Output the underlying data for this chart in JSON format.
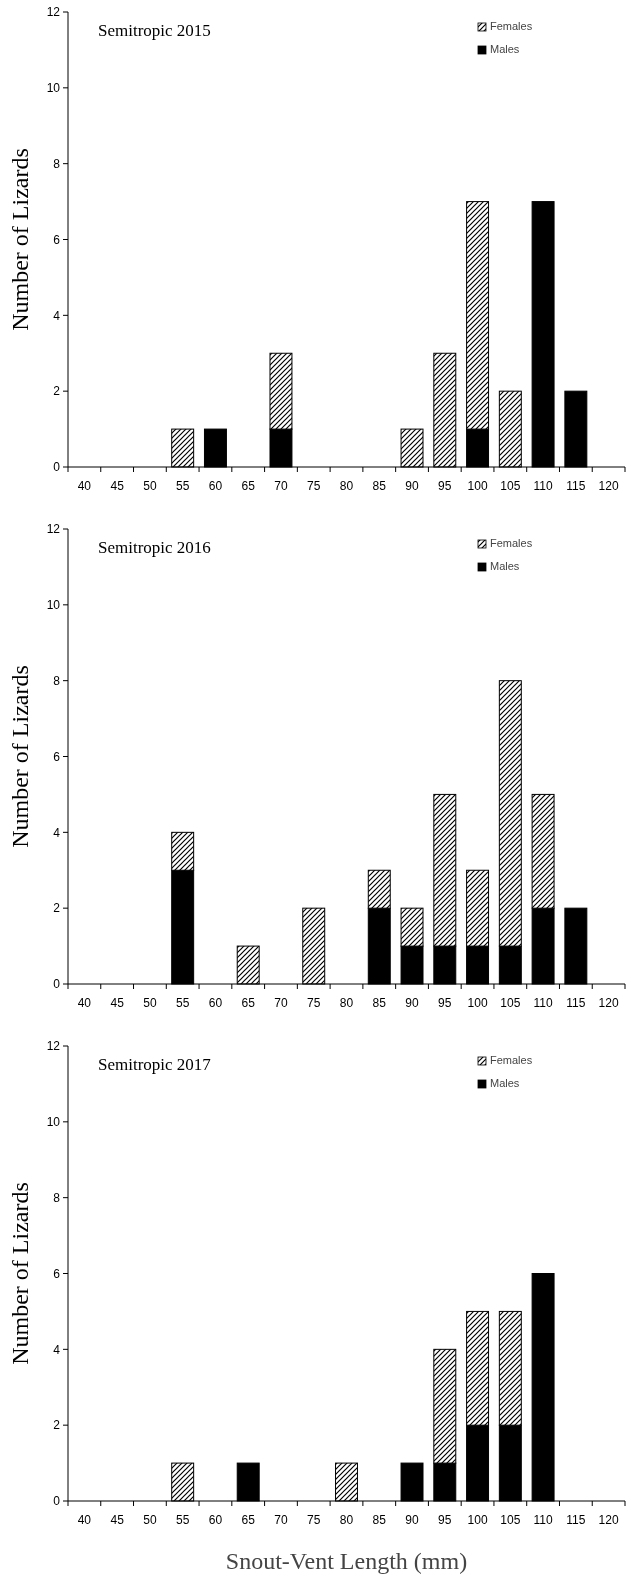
{
  "chart_data": [
    {
      "type": "bar",
      "title": "Semitropic 2015",
      "ylabel": "Number of Lizards",
      "categories": [
        "40",
        "45",
        "50",
        "55",
        "60",
        "65",
        "70",
        "75",
        "80",
        "85",
        "90",
        "95",
        "100",
        "105",
        "110",
        "115",
        "120"
      ],
      "stacked": true,
      "ylim": [
        0,
        12
      ],
      "yticks": [
        0,
        2,
        4,
        6,
        8,
        10,
        12
      ],
      "legend": "top right",
      "series": [
        {
          "name": "Males",
          "color": "#000000",
          "values": [
            0,
            0,
            0,
            0,
            1,
            0,
            1,
            0,
            0,
            0,
            0,
            0,
            1,
            0,
            7,
            2,
            0
          ]
        },
        {
          "name": "Females",
          "color": "#000000",
          "values": [
            0,
            0,
            0,
            1,
            0,
            0,
            2,
            0,
            0,
            0,
            1,
            3,
            6,
            2,
            0,
            0,
            0
          ]
        }
      ]
    },
    {
      "type": "bar",
      "title": "Semitropic 2016",
      "ylabel": "Number of Lizards",
      "categories": [
        "40",
        "45",
        "50",
        "55",
        "60",
        "65",
        "70",
        "75",
        "80",
        "85",
        "90",
        "95",
        "100",
        "105",
        "110",
        "115",
        "120"
      ],
      "stacked": true,
      "ylim": [
        0,
        12
      ],
      "yticks": [
        0,
        2,
        4,
        6,
        8,
        10,
        12
      ],
      "legend": "top right",
      "series": [
        {
          "name": "Males",
          "color": "#000000",
          "values": [
            0,
            0,
            0,
            3,
            0,
            0,
            0,
            0,
            0,
            2,
            1,
            1,
            1,
            1,
            2,
            2,
            0
          ]
        },
        {
          "name": "Females",
          "color": "#000000",
          "values": [
            0,
            0,
            0,
            1,
            0,
            1,
            0,
            2,
            0,
            1,
            1,
            4,
            2,
            7,
            3,
            0,
            0
          ]
        }
      ]
    },
    {
      "type": "bar",
      "title": "Semitropic 2017",
      "ylabel": "Number of Lizards",
      "xlabel": "Snout-Vent Length (mm)",
      "categories": [
        "40",
        "45",
        "50",
        "55",
        "60",
        "65",
        "70",
        "75",
        "80",
        "85",
        "90",
        "95",
        "100",
        "105",
        "110",
        "115",
        "120"
      ],
      "stacked": true,
      "ylim": [
        0,
        12
      ],
      "yticks": [
        0,
        2,
        4,
        6,
        8,
        10,
        12
      ],
      "legend": "top right",
      "series": [
        {
          "name": "Males",
          "color": "#000000",
          "values": [
            0,
            0,
            0,
            0,
            0,
            1,
            0,
            0,
            0,
            0,
            1,
            1,
            2,
            2,
            6,
            0,
            0
          ]
        },
        {
          "name": "Females",
          "color": "#000000",
          "values": [
            0,
            0,
            0,
            1,
            0,
            0,
            0,
            0,
            1,
            0,
            0,
            3,
            3,
            3,
            0,
            0,
            0
          ]
        }
      ]
    }
  ]
}
